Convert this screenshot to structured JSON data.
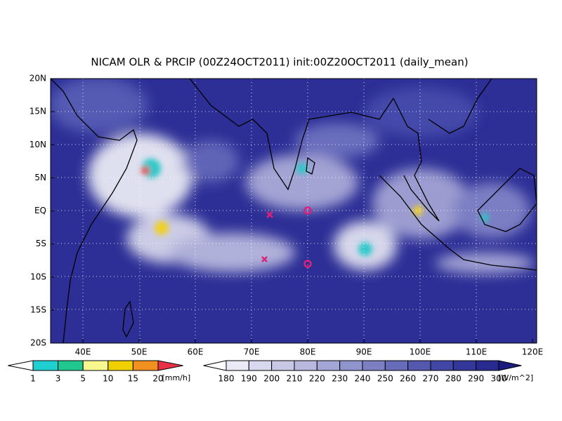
{
  "title": "NICAM OLR & PRCIP (00Z24OCT2011) init:00Z20OCT2011 (daily_mean)",
  "lat_labels": [
    "20N",
    "15N",
    "10N",
    "5N",
    "EQ",
    "5S",
    "10S",
    "15S",
    "20S"
  ],
  "lon_labels": [
    "40E",
    "50E",
    "60E",
    "70E",
    "80E",
    "90E",
    "100E",
    "110E",
    "120E"
  ],
  "precip_colorbar": {
    "labels": [
      "1",
      "3",
      "5",
      "10",
      "15",
      "20"
    ],
    "unit": "[mm/h]"
  },
  "olr_colorbar": {
    "labels": [
      "180",
      "190",
      "200",
      "210",
      "220",
      "230",
      "240",
      "250",
      "260",
      "270",
      "280",
      "290",
      "300"
    ],
    "unit": "[W/m^2]"
  }
}
